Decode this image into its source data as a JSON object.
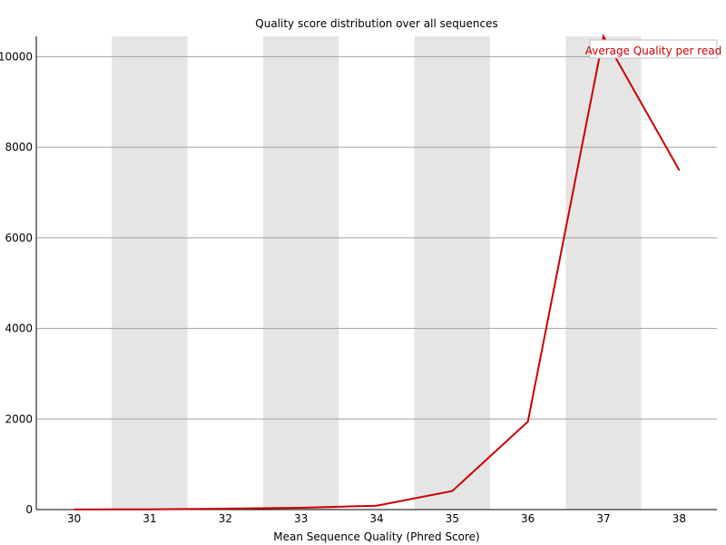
{
  "chart_data": {
    "type": "line",
    "title": "Quality score distribution over all sequences",
    "xlabel": "Mean Sequence Quality (Phred Score)",
    "ylabel": "",
    "x": [
      30,
      31,
      32,
      33,
      34,
      35,
      36,
      37,
      38
    ],
    "xticks": [
      "30",
      "31",
      "32",
      "33",
      "34",
      "35",
      "36",
      "37",
      "38"
    ],
    "yticks": [
      "0",
      "2000",
      "4000",
      "6000",
      "8000",
      "10000"
    ],
    "ylim": [
      0,
      10450
    ],
    "grid": true,
    "legend_position": "top-right",
    "series": [
      {
        "name": "Average Quality per read",
        "color": "#cc0000",
        "values": [
          3,
          5,
          20,
          40,
          85,
          410,
          1940,
          10450,
          7500
        ]
      }
    ],
    "band_color": "#e5e5e5",
    "grid_color": "#a0a0a0"
  }
}
